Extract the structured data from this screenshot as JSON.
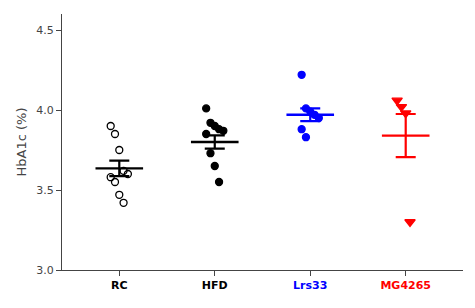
{
  "chart_data": {
    "type": "strip",
    "series": [
      {
        "name": "RC",
        "color": "black",
        "marker": "circle-open",
        "values": [
          3.9,
          3.85,
          3.75,
          3.62,
          3.6,
          3.58,
          3.55,
          3.47,
          3.42
        ],
        "mean": 3.635,
        "sem": 0.048
      },
      {
        "name": "HFD",
        "color": "black",
        "marker": "circle",
        "values": [
          4.01,
          3.92,
          3.9,
          3.88,
          3.87,
          3.85,
          3.73,
          3.65,
          3.55
        ],
        "mean": 3.8,
        "sem": 0.042
      },
      {
        "name": "Lrs33",
        "color": "blue",
        "marker": "circle",
        "values": [
          4.22,
          4.01,
          3.99,
          3.97,
          3.95,
          3.88,
          3.83
        ],
        "mean": 3.97,
        "sem": 0.04
      },
      {
        "name": "MG4265",
        "color": "red",
        "marker": "triangle-down",
        "values": [
          4.06,
          4.02,
          3.98,
          3.3
        ],
        "mean": 3.84,
        "sem": 0.135
      }
    ],
    "ylabel": "HbA1c (%)",
    "ylim": [
      3.0,
      4.6
    ],
    "yticks": [
      {
        "value": 3.0,
        "label": "3.0"
      },
      {
        "value": 3.5,
        "label": "3.5"
      },
      {
        "value": 4.0,
        "label": "4.0"
      },
      {
        "value": 4.5,
        "label": "4.5"
      }
    ],
    "grid": false
  }
}
